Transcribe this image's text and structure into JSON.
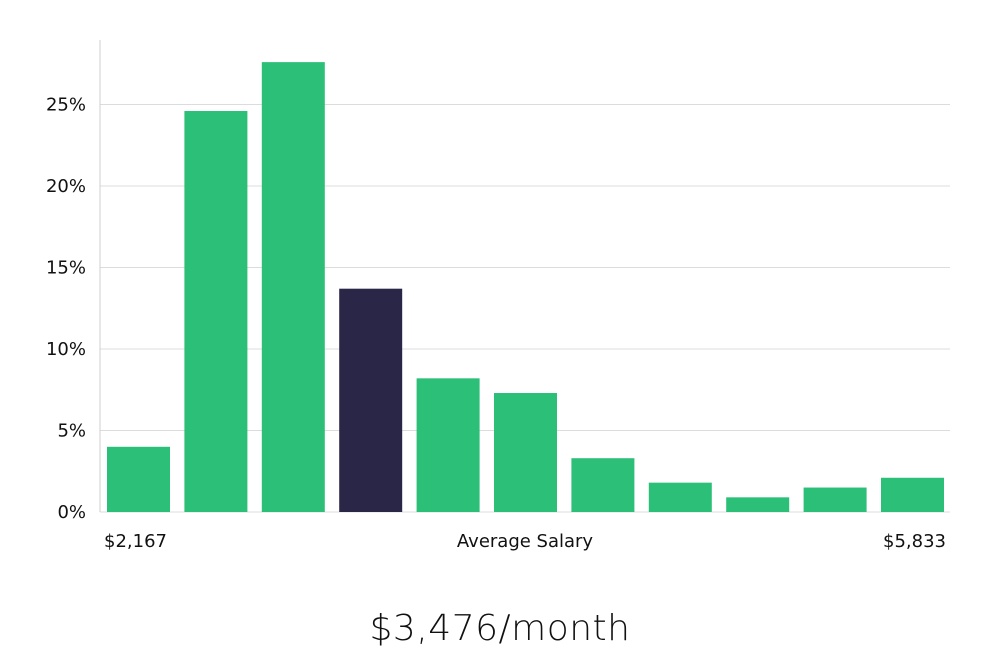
{
  "chart_data": {
    "type": "bar",
    "ylabel": "",
    "ylim": [
      0,
      29
    ],
    "yticks": [
      0,
      5,
      10,
      15,
      20,
      25
    ],
    "ytick_suffix": "%",
    "values": [
      4.0,
      24.6,
      27.6,
      13.7,
      8.2,
      7.3,
      3.3,
      1.8,
      0.9,
      1.5,
      2.1
    ],
    "highlight_index": 3,
    "xlabel_left": "$2,167",
    "xlabel_center": "Average Salary",
    "xlabel_right": "$5,833",
    "grid": true
  },
  "colors": {
    "bar": "#2bbf77",
    "highlight": "#2a2647",
    "grid": "#dcdcdc",
    "axis": "#cfcfcf"
  },
  "summary": {
    "salary_text": "$3,476/month"
  }
}
